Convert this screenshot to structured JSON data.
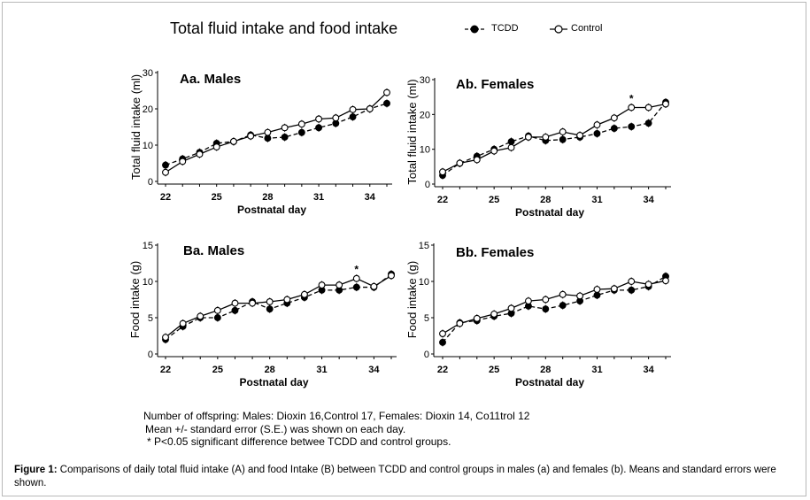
{
  "figure": {
    "title": "Total fluid intake and food intake",
    "legend": {
      "tcdd": "TCDD",
      "control": "Control"
    },
    "notes": [
      "Number of offspring: Males: Dioxin 16,Control 17, Females: Dioxin 14, Co11trol 12",
      "Mean +/- standard error (S.E.) was shown on each day.",
      "* P<0.05 significant difference betwee TCDD and control groups."
    ],
    "caption": {
      "label": "Figure 1:",
      "text": " Comparisons of daily total fluid intake (A) and food Intake (B) between TCDD and control groups in males (a) and females (b). Means and standard errors were shown."
    }
  },
  "chart_data": [
    {
      "id": "Aa",
      "type": "line",
      "title": "Aa. Males",
      "xlabel": "Postnatal day",
      "ylabel": "Total fluid intake (ml)",
      "xlim": [
        22,
        35
      ],
      "ylim": [
        0,
        30
      ],
      "xticks": [
        22,
        25,
        28,
        31,
        34
      ],
      "yticks": [
        0,
        10,
        20,
        30
      ],
      "x": [
        22,
        23,
        24,
        25,
        26,
        27,
        28,
        29,
        30,
        31,
        32,
        33,
        34,
        35
      ],
      "series": [
        {
          "name": "TCDD",
          "values": [
            4.5,
            6.2,
            8.0,
            10.5,
            11.0,
            12.8,
            11.9,
            12.2,
            13.5,
            14.8,
            16.0,
            17.8,
            20.0,
            21.5
          ]
        },
        {
          "name": "Control",
          "values": [
            2.5,
            5.5,
            7.5,
            9.5,
            11.0,
            12.5,
            13.5,
            14.8,
            15.8,
            17.2,
            17.5,
            19.8,
            20.0,
            24.5
          ]
        }
      ],
      "significant": []
    },
    {
      "id": "Ab",
      "type": "line",
      "title": "Ab. Females",
      "xlabel": "Postnatal day",
      "ylabel": "Total fluid intake (ml)",
      "xlim": [
        22,
        35
      ],
      "ylim": [
        0,
        30
      ],
      "xticks": [
        22,
        25,
        28,
        31,
        34
      ],
      "yticks": [
        0,
        10,
        20,
        30
      ],
      "x": [
        22,
        23,
        24,
        25,
        26,
        27,
        28,
        29,
        30,
        31,
        32,
        33,
        34,
        35
      ],
      "series": [
        {
          "name": "TCDD",
          "values": [
            2.5,
            6.0,
            8.0,
            10.0,
            12.2,
            13.8,
            12.5,
            12.8,
            13.5,
            14.5,
            16.0,
            16.5,
            17.5,
            23.5
          ]
        },
        {
          "name": "Control",
          "values": [
            3.5,
            6.0,
            7.0,
            9.5,
            10.5,
            13.5,
            13.5,
            15.0,
            14.0,
            17.0,
            19.0,
            22.0,
            22.0,
            23.0
          ]
        }
      ],
      "significant": [
        33
      ]
    },
    {
      "id": "Ba",
      "type": "line",
      "title": "Ba. Males",
      "xlabel": "Postnatal day",
      "ylabel": "Food intake (g)",
      "xlim": [
        22,
        35
      ],
      "ylim": [
        0,
        15
      ],
      "xticks": [
        22,
        25,
        28,
        31,
        34
      ],
      "yticks": [
        0,
        5,
        10,
        15
      ],
      "x": [
        22,
        23,
        24,
        25,
        26,
        27,
        28,
        29,
        30,
        31,
        32,
        33,
        34,
        35
      ],
      "series": [
        {
          "name": "TCDD",
          "values": [
            2.0,
            3.8,
            5.0,
            5.0,
            6.0,
            7.2,
            6.2,
            7.0,
            7.8,
            8.8,
            8.8,
            9.2,
            9.2,
            11.0
          ]
        },
        {
          "name": "Control",
          "values": [
            2.3,
            4.2,
            5.2,
            6.0,
            7.0,
            7.0,
            7.2,
            7.5,
            8.2,
            9.5,
            9.5,
            10.4,
            9.3,
            10.8
          ]
        }
      ],
      "significant": [
        33
      ]
    },
    {
      "id": "Bb",
      "type": "line",
      "title": "Bb. Females",
      "xlabel": "Postnatal day",
      "ylabel": "Food intake (g)",
      "xlim": [
        22,
        35
      ],
      "ylim": [
        0,
        15
      ],
      "xticks": [
        22,
        25,
        28,
        31,
        34
      ],
      "yticks": [
        0,
        5,
        10,
        15
      ],
      "x": [
        22,
        23,
        24,
        25,
        26,
        27,
        28,
        29,
        30,
        31,
        32,
        33,
        34,
        35
      ],
      "series": [
        {
          "name": "TCDD",
          "values": [
            1.6,
            4.3,
            4.6,
            5.2,
            5.6,
            6.6,
            6.2,
            6.7,
            7.3,
            8.1,
            8.8,
            8.8,
            9.3,
            10.7
          ]
        },
        {
          "name": "Control",
          "values": [
            2.8,
            4.2,
            4.9,
            5.5,
            6.3,
            7.3,
            7.5,
            8.2,
            8.0,
            8.9,
            9.0,
            10.0,
            9.6,
            10.1
          ]
        }
      ],
      "significant": []
    }
  ]
}
